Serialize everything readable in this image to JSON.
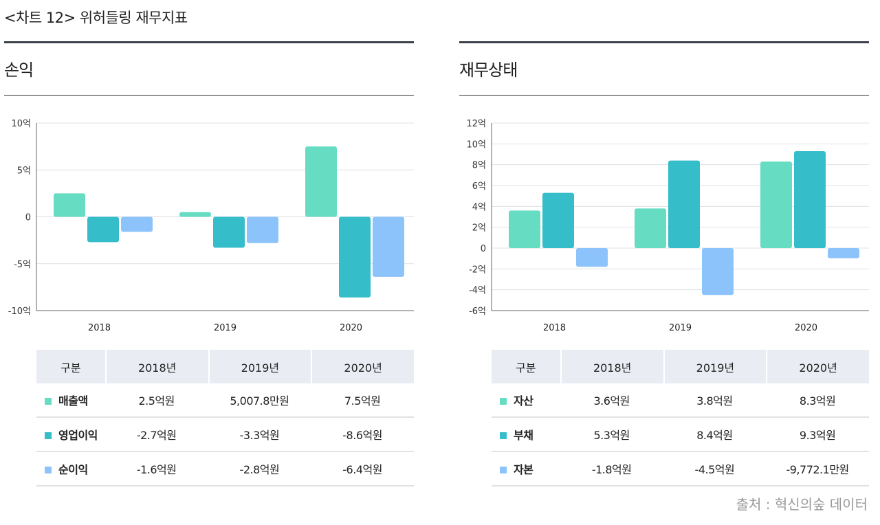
{
  "title": "<차트 12>  위허들링 재무지표",
  "source": "출처 : 혁신의숲 데이터",
  "colors": [
    "#66dcc2",
    "#36bdca",
    "#8cc3fb"
  ],
  "chart_data": [
    {
      "type": "bar",
      "title": "손익",
      "categories": [
        "2018",
        "2019",
        "2020"
      ],
      "ylim": [
        -10,
        10
      ],
      "yticks": [
        10,
        5,
        0,
        -5,
        -10
      ],
      "ytick_labels": [
        "10억",
        "5억",
        "0",
        "-5억",
        "-10억"
      ],
      "unit": "억",
      "grid": true,
      "series": [
        {
          "name": "매출액",
          "values": [
            2.5,
            0.50078,
            7.5
          ]
        },
        {
          "name": "영업이익",
          "values": [
            -2.7,
            -3.3,
            -8.6
          ]
        },
        {
          "name": "순이익",
          "values": [
            -1.6,
            -2.8,
            -6.4
          ]
        }
      ],
      "table": {
        "headers": [
          "구분",
          "2018년",
          "2019년",
          "2020년"
        ],
        "rows": [
          [
            "매출액",
            "2.5억원",
            "5,007.8만원",
            "7.5억원"
          ],
          [
            "영업이익",
            "-2.7억원",
            "-3.3억원",
            "-8.6억원"
          ],
          [
            "순이익",
            "-1.6억원",
            "-2.8억원",
            "-6.4억원"
          ]
        ]
      }
    },
    {
      "type": "bar",
      "title": "재무상태",
      "categories": [
        "2018",
        "2019",
        "2020"
      ],
      "ylim": [
        -6,
        12
      ],
      "yticks": [
        12,
        10,
        8,
        6,
        4,
        2,
        0,
        -2,
        -4,
        -6
      ],
      "ytick_labels": [
        "12억",
        "10억",
        "8억",
        "6억",
        "4억",
        "2억",
        "0",
        "-2억",
        "-4억",
        "-6억"
      ],
      "unit": "억",
      "grid": true,
      "series": [
        {
          "name": "자산",
          "values": [
            3.6,
            3.8,
            8.3
          ]
        },
        {
          "name": "부채",
          "values": [
            5.3,
            8.4,
            9.3
          ]
        },
        {
          "name": "자본",
          "values": [
            -1.8,
            -4.5,
            -0.97721
          ]
        }
      ],
      "table": {
        "headers": [
          "구분",
          "2018년",
          "2019년",
          "2020년"
        ],
        "rows": [
          [
            "자산",
            "3.6억원",
            "3.8억원",
            "8.3억원"
          ],
          [
            "부채",
            "5.3억원",
            "8.4억원",
            "9.3억원"
          ],
          [
            "자본",
            "-1.8억원",
            "-4.5억원",
            "-9,772.1만원"
          ]
        ]
      }
    }
  ]
}
